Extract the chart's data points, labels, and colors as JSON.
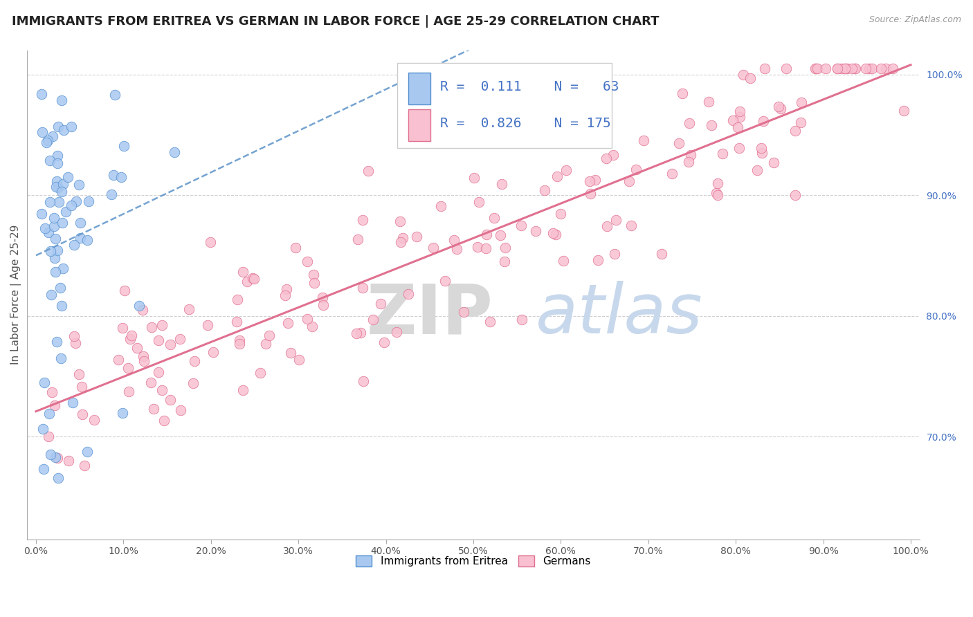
{
  "title": "IMMIGRANTS FROM ERITREA VS GERMAN IN LABOR FORCE | AGE 25-29 CORRELATION CHART",
  "source_text": "Source: ZipAtlas.com",
  "ylabel": "In Labor Force | Age 25-29",
  "watermark_zip": "ZIP",
  "watermark_atlas": "atlas",
  "xlim": [
    -0.01,
    1.01
  ],
  "ylim": [
    0.615,
    1.02
  ],
  "right_ytick_labels": [
    "70.0%",
    "80.0%",
    "90.0%",
    "100.0%"
  ],
  "right_ytick_values": [
    0.7,
    0.8,
    0.9,
    1.0
  ],
  "legend": {
    "blue_label": "Immigrants from Eritrea",
    "pink_label": "Germans",
    "blue_R": "0.111",
    "blue_N": "63",
    "pink_R": "0.826",
    "pink_N": "175"
  },
  "blue_scatter_color": "#A8C8F0",
  "blue_edge_color": "#5590D0",
  "blue_line_color": "#6699CC",
  "pink_scatter_color": "#F8C0D0",
  "pink_edge_color": "#E07090",
  "pink_line_color": "#E07090",
  "grid_color": "#CCCCCC",
  "background_color": "#FFFFFF",
  "title_fontsize": 13,
  "axis_label_fontsize": 11,
  "tick_fontsize": 10
}
